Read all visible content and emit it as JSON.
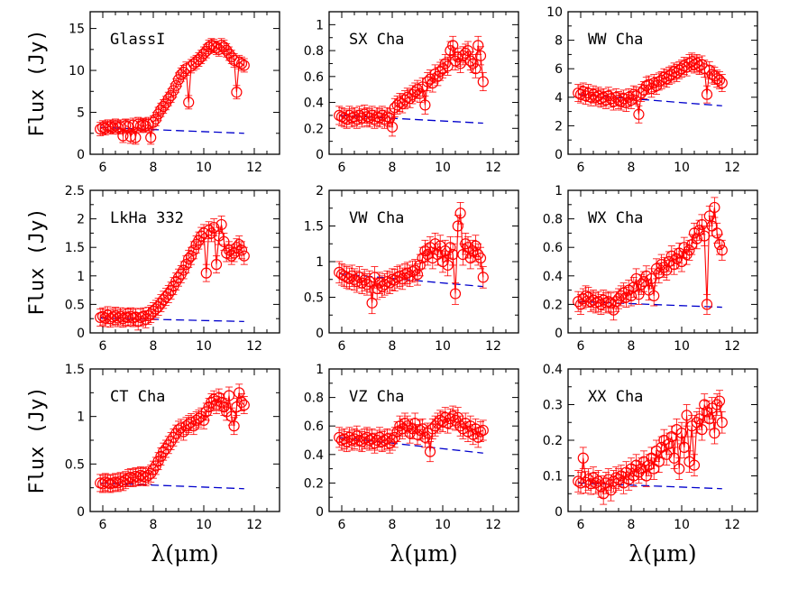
{
  "chart_data": [
    {
      "type": "scatter",
      "label": "GlassI",
      "xlabel": "λ(μm)",
      "ylabel": "Flux    (Jy)",
      "xlim": [
        5.5,
        13
      ],
      "ylim": [
        0,
        17
      ],
      "x_ticks": [
        6,
        8,
        10,
        12
      ],
      "y_ticks": [
        0,
        5,
        10,
        15
      ],
      "x": [
        5.9,
        6.0,
        6.1,
        6.2,
        6.3,
        6.4,
        6.5,
        6.6,
        6.7,
        6.8,
        6.9,
        7.0,
        7.1,
        7.2,
        7.3,
        7.4,
        7.5,
        7.6,
        7.7,
        7.8,
        7.9,
        8.0,
        8.1,
        8.2,
        8.3,
        8.4,
        8.5,
        8.6,
        8.7,
        8.8,
        8.9,
        9.0,
        9.1,
        9.2,
        9.3,
        9.4,
        9.5,
        9.6,
        9.7,
        9.8,
        9.9,
        10.0,
        10.1,
        10.2,
        10.3,
        10.4,
        10.5,
        10.6,
        10.7,
        10.8,
        10.9,
        11.0,
        11.1,
        11.2,
        11.3,
        11.4,
        11.5,
        11.6
      ],
      "y": [
        3.0,
        3.2,
        3.1,
        3.3,
        3.3,
        3.2,
        3.4,
        3.2,
        3.3,
        2.2,
        3.4,
        3.3,
        2.1,
        3.5,
        2.0,
        3.6,
        3.4,
        3.5,
        3.4,
        3.6,
        2.0,
        3.8,
        4.2,
        4.8,
        5.3,
        5.7,
        6.1,
        6.6,
        7.0,
        7.6,
        8.2,
        8.9,
        9.5,
        9.8,
        10.2,
        6.2,
        10.5,
        10.8,
        11.0,
        11.3,
        11.6,
        12.0,
        12.3,
        12.8,
        13.0,
        12.9,
        12.7,
        12.5,
        13.0,
        12.8,
        12.4,
        12.0,
        11.6,
        11.2,
        7.4,
        11.0,
        10.8,
        10.6
      ],
      "err": 0.8,
      "continuum": {
        "x": [
          5.9,
          11.6
        ],
        "y": [
          3.2,
          2.5
        ]
      }
    },
    {
      "type": "scatter",
      "label": "SX Cha",
      "xlabel": "λ(μm)",
      "ylabel": "",
      "xlim": [
        5.5,
        13
      ],
      "ylim": [
        0,
        1.1
      ],
      "x_ticks": [
        6,
        8,
        10,
        12
      ],
      "y_ticks": [
        0,
        0.2,
        0.4,
        0.6,
        0.8,
        1
      ],
      "x": [
        5.9,
        6.0,
        6.1,
        6.2,
        6.3,
        6.4,
        6.5,
        6.6,
        6.7,
        6.8,
        6.9,
        7.0,
        7.1,
        7.2,
        7.3,
        7.4,
        7.5,
        7.6,
        7.7,
        7.8,
        7.9,
        8.0,
        8.1,
        8.2,
        8.3,
        8.4,
        8.5,
        8.6,
        8.7,
        8.8,
        8.9,
        9.0,
        9.1,
        9.2,
        9.3,
        9.4,
        9.5,
        9.6,
        9.7,
        9.8,
        9.9,
        10.0,
        10.1,
        10.2,
        10.3,
        10.4,
        10.5,
        10.6,
        10.7,
        10.8,
        10.9,
        11.0,
        11.1,
        11.2,
        11.3,
        11.4,
        11.5,
        11.6
      ],
      "y": [
        0.3,
        0.29,
        0.28,
        0.27,
        0.3,
        0.28,
        0.29,
        0.27,
        0.3,
        0.28,
        0.31,
        0.29,
        0.28,
        0.3,
        0.27,
        0.29,
        0.28,
        0.3,
        0.27,
        0.29,
        0.28,
        0.21,
        0.36,
        0.38,
        0.4,
        0.39,
        0.42,
        0.44,
        0.43,
        0.46,
        0.48,
        0.5,
        0.47,
        0.52,
        0.38,
        0.56,
        0.58,
        0.55,
        0.62,
        0.6,
        0.64,
        0.66,
        0.7,
        0.68,
        0.8,
        0.84,
        0.72,
        0.75,
        0.7,
        0.76,
        0.78,
        0.8,
        0.72,
        0.7,
        0.66,
        0.84,
        0.76,
        0.56
      ],
      "err": 0.07,
      "continuum": {
        "x": [
          5.9,
          11.6
        ],
        "y": [
          0.3,
          0.24
        ]
      }
    },
    {
      "type": "scatter",
      "label": "WW Cha",
      "xlabel": "λ(μm)",
      "ylabel": "",
      "xlim": [
        5.5,
        13
      ],
      "ylim": [
        0,
        10
      ],
      "x_ticks": [
        6,
        8,
        10,
        12
      ],
      "y_ticks": [
        0,
        2,
        4,
        6,
        8,
        10
      ],
      "x": [
        5.9,
        6.0,
        6.1,
        6.2,
        6.3,
        6.4,
        6.5,
        6.6,
        6.7,
        6.8,
        6.9,
        7.0,
        7.1,
        7.2,
        7.3,
        7.4,
        7.5,
        7.6,
        7.7,
        7.8,
        7.9,
        8.0,
        8.1,
        8.2,
        8.3,
        8.4,
        8.5,
        8.6,
        8.7,
        8.8,
        8.9,
        9.0,
        9.1,
        9.2,
        9.3,
        9.4,
        9.5,
        9.6,
        9.7,
        9.8,
        9.9,
        10.0,
        10.1,
        10.2,
        10.3,
        10.4,
        10.5,
        10.6,
        10.7,
        10.8,
        10.9,
        11.0,
        11.1,
        11.2,
        11.3,
        11.4,
        11.5,
        11.6
      ],
      "y": [
        4.3,
        4.2,
        4.4,
        4.1,
        4.3,
        4.0,
        4.2,
        4.0,
        4.1,
        3.9,
        4.0,
        3.8,
        4.1,
        3.9,
        3.7,
        4.0,
        3.8,
        3.7,
        3.9,
        3.6,
        4.0,
        3.8,
        4.2,
        4.1,
        2.8,
        4.3,
        4.5,
        4.8,
        4.9,
        4.6,
        5.0,
        4.8,
        5.1,
        5.2,
        5.4,
        5.3,
        5.5,
        5.6,
        5.8,
        5.7,
        5.9,
        6.0,
        6.2,
        6.1,
        6.4,
        6.5,
        6.3,
        6.4,
        6.2,
        6.3,
        6.0,
        4.2,
        5.9,
        5.6,
        5.5,
        5.3,
        5.2,
        5.0
      ],
      "err": 0.6,
      "continuum": {
        "x": [
          5.9,
          11.6
        ],
        "y": [
          4.2,
          3.4
        ]
      }
    },
    {
      "type": "scatter",
      "label": "LkHa 332",
      "xlabel": "λ(μm)",
      "ylabel": "Flux    (Jy)",
      "xlim": [
        5.5,
        13
      ],
      "ylim": [
        0,
        2.5
      ],
      "x_ticks": [
        6,
        8,
        10,
        12
      ],
      "y_ticks": [
        0,
        0.5,
        1,
        1.5,
        2,
        2.5
      ],
      "x": [
        5.9,
        6.0,
        6.1,
        6.2,
        6.3,
        6.4,
        6.5,
        6.6,
        6.7,
        6.8,
        6.9,
        7.0,
        7.1,
        7.2,
        7.3,
        7.4,
        7.5,
        7.6,
        7.7,
        7.8,
        7.9,
        8.0,
        8.1,
        8.2,
        8.3,
        8.4,
        8.5,
        8.6,
        8.7,
        8.8,
        8.9,
        9.0,
        9.1,
        9.2,
        9.3,
        9.4,
        9.5,
        9.6,
        9.7,
        9.8,
        9.9,
        10.0,
        10.1,
        10.2,
        10.3,
        10.4,
        10.5,
        10.6,
        10.7,
        10.8,
        10.9,
        11.0,
        11.1,
        11.2,
        11.3,
        11.4,
        11.5,
        11.6
      ],
      "y": [
        0.27,
        0.29,
        0.26,
        0.31,
        0.25,
        0.28,
        0.3,
        0.26,
        0.29,
        0.25,
        0.28,
        0.27,
        0.29,
        0.26,
        0.28,
        0.2,
        0.27,
        0.29,
        0.24,
        0.3,
        0.33,
        0.38,
        0.42,
        0.46,
        0.52,
        0.58,
        0.63,
        0.68,
        0.74,
        0.82,
        0.9,
        0.97,
        1.03,
        1.1,
        1.2,
        1.3,
        1.35,
        1.45,
        1.55,
        1.62,
        1.7,
        1.75,
        1.05,
        1.8,
        1.75,
        1.85,
        1.2,
        1.7,
        1.9,
        1.6,
        1.4,
        1.45,
        1.35,
        1.4,
        1.5,
        1.55,
        1.45,
        1.35
      ],
      "err": 0.15,
      "continuum": {
        "x": [
          5.9,
          11.6
        ],
        "y": [
          0.26,
          0.2
        ]
      }
    },
    {
      "type": "scatter",
      "label": "VW Cha",
      "xlabel": "λ(μm)",
      "ylabel": "",
      "xlim": [
        5.5,
        13
      ],
      "ylim": [
        0,
        2
      ],
      "x_ticks": [
        6,
        8,
        10,
        12
      ],
      "y_ticks": [
        0,
        0.5,
        1,
        1.5,
        2
      ],
      "x": [
        5.9,
        6.0,
        6.1,
        6.2,
        6.3,
        6.4,
        6.5,
        6.6,
        6.7,
        6.8,
        6.9,
        7.0,
        7.1,
        7.2,
        7.3,
        7.4,
        7.5,
        7.6,
        7.7,
        7.8,
        7.9,
        8.0,
        8.1,
        8.2,
        8.3,
        8.4,
        8.5,
        8.6,
        8.7,
        8.8,
        8.9,
        9.0,
        9.1,
        9.2,
        9.3,
        9.4,
        9.5,
        9.6,
        9.7,
        9.8,
        9.9,
        10.0,
        10.1,
        10.2,
        10.3,
        10.4,
        10.5,
        10.6,
        10.7,
        10.8,
        10.9,
        11.0,
        11.1,
        11.2,
        11.3,
        11.4,
        11.5,
        11.6
      ],
      "y": [
        0.85,
        0.82,
        0.8,
        0.78,
        0.76,
        0.8,
        0.75,
        0.72,
        0.78,
        0.7,
        0.74,
        0.68,
        0.72,
        0.42,
        0.78,
        0.62,
        0.7,
        0.65,
        0.68,
        0.72,
        0.7,
        0.75,
        0.74,
        0.78,
        0.8,
        0.76,
        0.82,
        0.84,
        0.8,
        0.86,
        0.88,
        0.82,
        0.95,
        1.05,
        1.15,
        1.1,
        1.2,
        1.05,
        1.25,
        1.1,
        1.22,
        1.0,
        1.15,
        0.95,
        1.2,
        1.1,
        0.55,
        1.5,
        1.68,
        1.1,
        1.25,
        1.2,
        1.05,
        1.15,
        1.22,
        1.1,
        1.05,
        0.78
      ],
      "err": 0.15,
      "continuum": {
        "x": [
          5.9,
          11.6
        ],
        "y": [
          0.83,
          0.65
        ]
      }
    },
    {
      "type": "scatter",
      "label": "WX Cha",
      "xlabel": "λ(μm)",
      "ylabel": "",
      "xlim": [
        5.5,
        13
      ],
      "ylim": [
        0,
        1
      ],
      "x_ticks": [
        6,
        8,
        10,
        12
      ],
      "y_ticks": [
        0,
        0.2,
        0.4,
        0.6,
        0.8,
        1
      ],
      "x": [
        5.9,
        6.0,
        6.1,
        6.2,
        6.3,
        6.4,
        6.5,
        6.6,
        6.7,
        6.8,
        6.9,
        7.0,
        7.1,
        7.2,
        7.3,
        7.4,
        7.5,
        7.6,
        7.7,
        7.8,
        7.9,
        8.0,
        8.1,
        8.2,
        8.3,
        8.4,
        8.5,
        8.6,
        8.7,
        8.8,
        8.9,
        9.0,
        9.1,
        9.2,
        9.3,
        9.4,
        9.5,
        9.6,
        9.7,
        9.8,
        9.9,
        10.0,
        10.1,
        10.2,
        10.3,
        10.4,
        10.5,
        10.6,
        10.7,
        10.8,
        10.9,
        11.0,
        11.1,
        11.2,
        11.3,
        11.4,
        11.5,
        11.6
      ],
      "y": [
        0.22,
        0.2,
        0.24,
        0.26,
        0.25,
        0.22,
        0.23,
        0.21,
        0.22,
        0.2,
        0.23,
        0.21,
        0.22,
        0.21,
        0.16,
        0.22,
        0.24,
        0.26,
        0.28,
        0.25,
        0.3,
        0.26,
        0.32,
        0.38,
        0.27,
        0.34,
        0.36,
        0.4,
        0.3,
        0.38,
        0.26,
        0.45,
        0.42,
        0.48,
        0.46,
        0.44,
        0.5,
        0.54,
        0.48,
        0.52,
        0.56,
        0.5,
        0.6,
        0.55,
        0.58,
        0.62,
        0.7,
        0.66,
        0.72,
        0.76,
        0.68,
        0.2,
        0.82,
        0.75,
        0.88,
        0.7,
        0.62,
        0.58
      ],
      "err": 0.07,
      "continuum": {
        "x": [
          5.9,
          11.6
        ],
        "y": [
          0.22,
          0.18
        ]
      }
    },
    {
      "type": "scatter",
      "label": "CT Cha",
      "xlabel": "λ(μm)",
      "ylabel": "Flux    (Jy)",
      "xlim": [
        5.5,
        13
      ],
      "ylim": [
        0,
        1.5
      ],
      "x_ticks": [
        6,
        8,
        10,
        12
      ],
      "y_ticks": [
        0,
        0.5,
        1,
        1.5
      ],
      "x": [
        5.9,
        6.0,
        6.1,
        6.2,
        6.3,
        6.4,
        6.5,
        6.6,
        6.7,
        6.8,
        6.9,
        7.0,
        7.1,
        7.2,
        7.3,
        7.4,
        7.5,
        7.6,
        7.7,
        7.8,
        7.9,
        8.0,
        8.1,
        8.2,
        8.3,
        8.4,
        8.5,
        8.6,
        8.7,
        8.8,
        8.9,
        9.0,
        9.1,
        9.2,
        9.3,
        9.4,
        9.5,
        9.6,
        9.7,
        9.8,
        9.9,
        10.0,
        10.1,
        10.2,
        10.3,
        10.4,
        10.5,
        10.6,
        10.7,
        10.8,
        10.9,
        11.0,
        11.1,
        11.2,
        11.3,
        11.4,
        11.5,
        11.6
      ],
      "y": [
        0.3,
        0.29,
        0.31,
        0.3,
        0.29,
        0.3,
        0.31,
        0.3,
        0.32,
        0.31,
        0.33,
        0.35,
        0.36,
        0.35,
        0.37,
        0.36,
        0.38,
        0.37,
        0.36,
        0.38,
        0.4,
        0.44,
        0.48,
        0.53,
        0.58,
        0.63,
        0.66,
        0.7,
        0.74,
        0.78,
        0.82,
        0.86,
        0.88,
        0.84,
        0.9,
        0.92,
        0.94,
        0.9,
        0.96,
        0.98,
        1.0,
        0.96,
        1.05,
        1.1,
        1.15,
        1.18,
        1.12,
        1.2,
        1.15,
        1.1,
        1.05,
        1.22,
        1.0,
        0.9,
        1.1,
        1.25,
        1.15,
        1.12
      ],
      "err": 0.09,
      "continuum": {
        "x": [
          5.9,
          11.6
        ],
        "y": [
          0.3,
          0.24
        ]
      }
    },
    {
      "type": "scatter",
      "label": "VZ Cha",
      "xlabel": "λ(μm)",
      "ylabel": "",
      "xlim": [
        5.5,
        13
      ],
      "ylim": [
        0,
        1
      ],
      "x_ticks": [
        6,
        8,
        10,
        12
      ],
      "y_ticks": [
        0,
        0.2,
        0.4,
        0.6,
        0.8,
        1
      ],
      "x": [
        5.9,
        6.0,
        6.1,
        6.2,
        6.3,
        6.4,
        6.5,
        6.6,
        6.7,
        6.8,
        6.9,
        7.0,
        7.1,
        7.2,
        7.3,
        7.4,
        7.5,
        7.6,
        7.7,
        7.8,
        7.9,
        8.0,
        8.1,
        8.2,
        8.3,
        8.4,
        8.5,
        8.6,
        8.7,
        8.8,
        8.9,
        9.0,
        9.1,
        9.2,
        9.3,
        9.4,
        9.5,
        9.6,
        9.7,
        9.8,
        9.9,
        10.0,
        10.1,
        10.2,
        10.3,
        10.4,
        10.5,
        10.6,
        10.7,
        10.8,
        10.9,
        11.0,
        11.1,
        11.2,
        11.3,
        11.4,
        11.5,
        11.6
      ],
      "y": [
        0.52,
        0.5,
        0.51,
        0.49,
        0.52,
        0.5,
        0.51,
        0.53,
        0.5,
        0.49,
        0.51,
        0.52,
        0.5,
        0.51,
        0.48,
        0.5,
        0.52,
        0.49,
        0.5,
        0.51,
        0.48,
        0.5,
        0.52,
        0.56,
        0.6,
        0.58,
        0.62,
        0.6,
        0.55,
        0.58,
        0.62,
        0.54,
        0.57,
        0.58,
        0.52,
        0.55,
        0.42,
        0.58,
        0.6,
        0.62,
        0.64,
        0.63,
        0.66,
        0.62,
        0.65,
        0.67,
        0.64,
        0.66,
        0.6,
        0.58,
        0.62,
        0.56,
        0.6,
        0.54,
        0.58,
        0.52,
        0.56,
        0.57
      ],
      "err": 0.07,
      "continuum": {
        "x": [
          5.9,
          11.6
        ],
        "y": [
          0.52,
          0.41
        ]
      }
    },
    {
      "type": "scatter",
      "label": "XX Cha",
      "xlabel": "λ(μm)",
      "ylabel": "",
      "xlim": [
        5.5,
        13
      ],
      "ylim": [
        0,
        0.4
      ],
      "x_ticks": [
        6,
        8,
        10,
        12
      ],
      "y_ticks": [
        0,
        0.1,
        0.2,
        0.3,
        0.4
      ],
      "x": [
        5.9,
        6.0,
        6.1,
        6.2,
        6.3,
        6.4,
        6.5,
        6.6,
        6.7,
        6.8,
        6.9,
        7.0,
        7.1,
        7.2,
        7.3,
        7.4,
        7.5,
        7.6,
        7.7,
        7.8,
        7.9,
        8.0,
        8.1,
        8.2,
        8.3,
        8.4,
        8.5,
        8.6,
        8.7,
        8.8,
        8.9,
        9.0,
        9.1,
        9.2,
        9.3,
        9.4,
        9.5,
        9.6,
        9.7,
        9.8,
        9.9,
        10.0,
        10.1,
        10.2,
        10.3,
        10.4,
        10.5,
        10.6,
        10.7,
        10.8,
        10.9,
        11.0,
        11.1,
        11.2,
        11.3,
        11.4,
        11.5,
        11.6
      ],
      "y": [
        0.085,
        0.08,
        0.15,
        0.082,
        0.09,
        0.078,
        0.095,
        0.08,
        0.085,
        0.07,
        0.05,
        0.08,
        0.09,
        0.06,
        0.085,
        0.095,
        0.09,
        0.1,
        0.08,
        0.11,
        0.09,
        0.12,
        0.1,
        0.13,
        0.11,
        0.12,
        0.14,
        0.1,
        0.13,
        0.15,
        0.12,
        0.17,
        0.14,
        0.18,
        0.2,
        0.16,
        0.19,
        0.21,
        0.15,
        0.23,
        0.12,
        0.22,
        0.18,
        0.27,
        0.14,
        0.24,
        0.13,
        0.25,
        0.26,
        0.23,
        0.3,
        0.28,
        0.26,
        0.29,
        0.22,
        0.3,
        0.31,
        0.25
      ],
      "err": 0.03,
      "continuum": {
        "x": [
          5.9,
          11.6
        ],
        "y": [
          0.08,
          0.064
        ]
      }
    }
  ]
}
